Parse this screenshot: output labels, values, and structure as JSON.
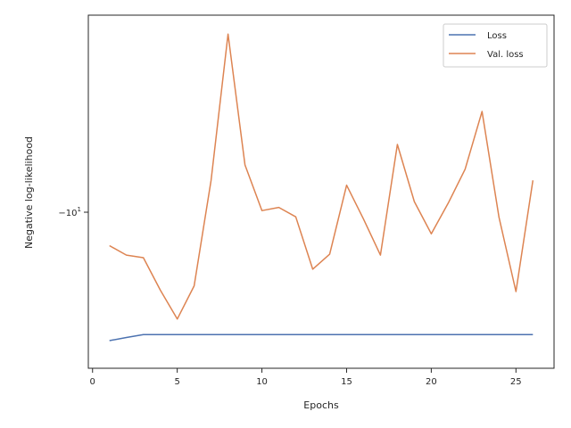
{
  "chart_data": {
    "type": "line",
    "xlabel": "Epochs",
    "ylabel": "Negative log-likelihood",
    "xlim": [
      -0.25,
      27.25
    ],
    "x_ticks": [
      0,
      5,
      10,
      15,
      20,
      25
    ],
    "y_scale": "symlog",
    "y_tick_label_base": "−10",
    "y_tick_label_exp": "1",
    "legend_position": "upper right",
    "grid": false,
    "series": [
      {
        "name": "Loss",
        "color": "#4c72b0",
        "x": [
          1,
          2,
          3,
          4,
          5,
          6,
          7,
          8,
          9,
          10,
          11,
          12,
          13,
          14,
          15,
          16,
          17,
          18,
          19,
          20,
          21,
          22,
          23,
          24,
          25,
          26
        ],
        "y": [
          -6.1,
          -6.11,
          -6.12,
          -6.12,
          -6.12,
          -6.12,
          -6.12,
          -6.12,
          -6.12,
          -6.12,
          -6.12,
          -6.12,
          -6.12,
          -6.12,
          -6.12,
          -6.12,
          -6.12,
          -6.12,
          -6.12,
          -6.12,
          -6.12,
          -6.12,
          -6.12,
          -6.12,
          -6.12,
          -6.12
        ]
      },
      {
        "name": "Val. loss",
        "color": "#dd8452",
        "x": [
          1,
          2,
          3,
          4,
          5,
          6,
          7,
          8,
          9,
          10,
          11,
          12,
          13,
          14,
          15,
          16,
          17,
          18,
          19,
          20,
          21,
          22,
          23,
          24,
          25,
          26
        ],
        "y": [
          -6.78,
          -6.66,
          -6.63,
          -6.34,
          -6.18,
          -6.37,
          -8.34,
          -29.8,
          -9.0,
          -7.42,
          -7.5,
          -7.28,
          -6.51,
          -6.67,
          -8.16,
          -7.23,
          -6.66,
          -10.17,
          -7.65,
          -6.96,
          -7.61,
          -8.8,
          -13.04,
          -7.27,
          -6.33,
          -8.34
        ]
      }
    ]
  }
}
